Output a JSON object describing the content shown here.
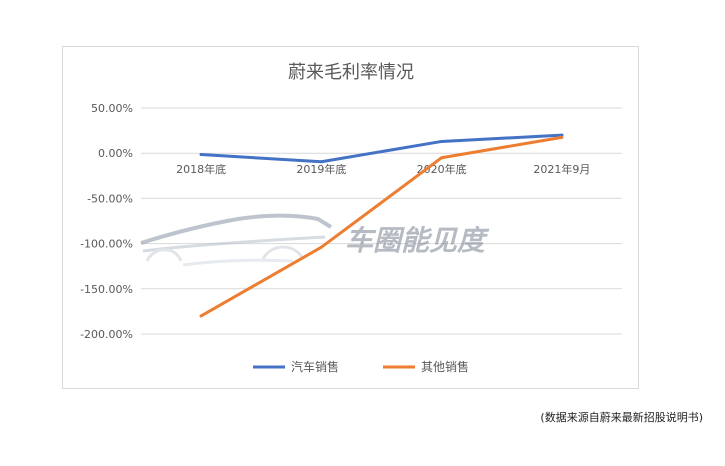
{
  "chart_data": {
    "type": "line",
    "title": "蔚来毛利率情况",
    "categories": [
      "2018年底",
      "2019年底",
      "2020年底",
      "2021年9月"
    ],
    "y_ticks": [
      "50.00%",
      "0.00%",
      "-50.00%",
      "-100.00%",
      "-150.00%",
      "-200.00%"
    ],
    "ylim": [
      -200,
      50
    ],
    "grid": true,
    "legend_position": "bottom",
    "series": [
      {
        "name": "汽车销售",
        "values": [
          -1.5,
          -9.5,
          13,
          20
        ],
        "color": "#4472c4"
      },
      {
        "name": "其他销售",
        "values": [
          -180,
          -104,
          -5,
          17.5
        ],
        "color": "#ed7d31"
      }
    ]
  },
  "watermark": {
    "text": "车圈能见度"
  },
  "source_note": "(数据来源自蔚来最新招股说明书)"
}
